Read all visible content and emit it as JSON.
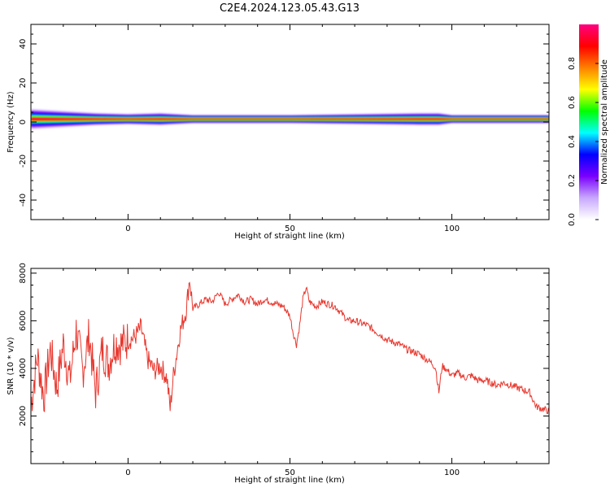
{
  "title": "C2E4.2024.123.05.43.G13",
  "chart_data": [
    {
      "type": "heatmap",
      "xlabel": "Height of straight line (km)",
      "ylabel": "Frequency (Hz)",
      "xlim": [
        -30,
        130
      ],
      "ylim": [
        -50,
        50
      ],
      "xticks": [
        0,
        50,
        100
      ],
      "yticks": [
        -40,
        -20,
        0,
        20,
        40
      ],
      "grid": false,
      "colorbar": {
        "label": "Normalized spectral amplitude",
        "range": [
          0,
          1
        ],
        "ticks": [
          "0.0",
          "0.2",
          "0.4",
          "0.6",
          "0.8"
        ],
        "colors": [
          "#ffffff",
          "#c8a8ff",
          "#7a00ff",
          "#0000ff",
          "#00ffff",
          "#00ff00",
          "#ffff00",
          "#ff8000",
          "#ff0000",
          "#ff0080"
        ]
      },
      "band": {
        "center_hz": 1.5,
        "description_values": [
          {
            "x": -30,
            "halfwidth_hz": 5
          },
          {
            "x": -20,
            "halfwidth_hz": 4
          },
          {
            "x": -10,
            "halfwidth_hz": 3
          },
          {
            "x": 0,
            "halfwidth_hz": 2.5
          },
          {
            "x": 10,
            "halfwidth_hz": 3
          },
          {
            "x": 20,
            "halfwidth_hz": 2
          },
          {
            "x": 50,
            "halfwidth_hz": 2
          },
          {
            "x": 70,
            "halfwidth_hz": 2.5
          },
          {
            "x": 90,
            "halfwidth_hz": 3
          },
          {
            "x": 96,
            "halfwidth_hz": 3
          },
          {
            "x": 100,
            "halfwidth_hz": 2
          },
          {
            "x": 130,
            "halfwidth_hz": 2
          }
        ]
      }
    },
    {
      "type": "line",
      "xlabel": "Height of straight line (km)",
      "ylabel": "SNR (10 * v/v)",
      "xlim": [
        -30,
        130
      ],
      "ylim": [
        0,
        8200
      ],
      "xticks": [
        0,
        50,
        100
      ],
      "yticks": [
        2000,
        4000,
        6000,
        8000
      ],
      "grid": false,
      "series": [
        {
          "color": "#e8382f",
          "x": [
            -30,
            -28,
            -26,
            -24,
            -22,
            -20,
            -18,
            -16,
            -14,
            -12,
            -10,
            -8,
            -6,
            -4,
            -2,
            0,
            2,
            4,
            6,
            8,
            10,
            12,
            13,
            14,
            16,
            18,
            19,
            20,
            22,
            24,
            26,
            28,
            30,
            32,
            34,
            36,
            38,
            40,
            42,
            44,
            46,
            48,
            50,
            51,
            52,
            53,
            54,
            55,
            56,
            58,
            60,
            62,
            64,
            66,
            68,
            70,
            72,
            74,
            76,
            78,
            80,
            82,
            84,
            86,
            88,
            90,
            92,
            94,
            95,
            96,
            97,
            98,
            100,
            102,
            104,
            106,
            108,
            110,
            112,
            114,
            116,
            118,
            120,
            122,
            124,
            126,
            128,
            130
          ],
          "y": [
            2500,
            4500,
            2800,
            4800,
            3200,
            5000,
            3500,
            5600,
            3900,
            5400,
            3000,
            4800,
            4200,
            5100,
            5000,
            5200,
            5300,
            5700,
            4400,
            3900,
            4100,
            3600,
            2300,
            3700,
            5500,
            6500,
            7800,
            6500,
            6700,
            6900,
            6800,
            7200,
            6700,
            6900,
            7100,
            6800,
            6900,
            6700,
            6900,
            6800,
            6700,
            6600,
            6200,
            5500,
            5000,
            5800,
            6900,
            7400,
            6800,
            6600,
            6800,
            6700,
            6600,
            6300,
            6000,
            6000,
            5900,
            5800,
            5600,
            5400,
            5200,
            5100,
            5000,
            4800,
            4700,
            4600,
            4400,
            4200,
            4000,
            3000,
            4100,
            4000,
            3700,
            3800,
            3600,
            3700,
            3500,
            3500,
            3400,
            3300,
            3400,
            3300,
            3200,
            3100,
            3000,
            2400,
            2300,
            2200
          ]
        }
      ]
    }
  ]
}
